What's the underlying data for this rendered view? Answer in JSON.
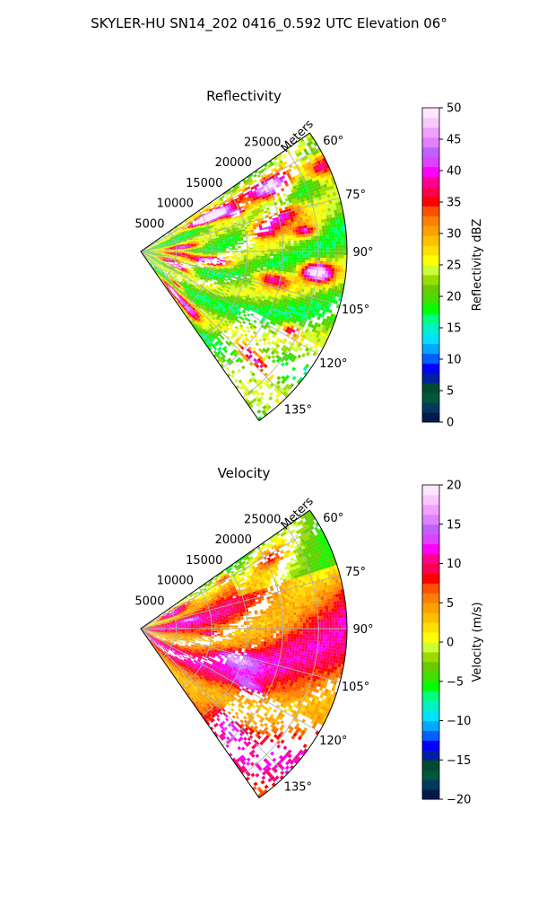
{
  "suptitle": "SKYLER-HU  SN14_202  0416_0.592 UTC Elevation 06°",
  "colors": {
    "background": "#ffffff",
    "grid": "#b0b0b0",
    "axis": "#000000",
    "reflectivity_scale": [
      "#001a4d",
      "#003a5c",
      "#00573d",
      "#004a2f",
      "#0020a0",
      "#0000ff",
      "#0060ff",
      "#00a8ff",
      "#00e0ff",
      "#00f0c8",
      "#00ff80",
      "#00ff00",
      "#40e000",
      "#66cc00",
      "#99dd00",
      "#ccff33",
      "#ffff00",
      "#ffe000",
      "#ffc000",
      "#ffa000",
      "#ff8000",
      "#ff5000",
      "#ff0000",
      "#ff0050",
      "#ff0090",
      "#ff00ff",
      "#e040ff",
      "#c060ff",
      "#e080ff",
      "#f0a0ff",
      "#f8c8ff",
      "#ffe6ff"
    ],
    "velocity_scale": [
      "#001a4d",
      "#003a5c",
      "#00573d",
      "#004a2f",
      "#0020a0",
      "#0000ff",
      "#0060ff",
      "#00a8ff",
      "#00e0ff",
      "#00f0c8",
      "#00ff80",
      "#00ff00",
      "#40e000",
      "#66cc00",
      "#99dd00",
      "#ccff33",
      "#ffff00",
      "#ffe000",
      "#ffc000",
      "#ffa000",
      "#ff8000",
      "#ff5000",
      "#ff0000",
      "#ff0050",
      "#ff0090",
      "#ff00ff",
      "#e040ff",
      "#c060ff",
      "#e080ff",
      "#f0a0ff",
      "#f8c8ff",
      "#ffe6ff"
    ]
  },
  "chart_data": [
    {
      "type": "heatmap",
      "title": "Reflectivity",
      "projection": "polar sector",
      "radial_label": "Meters",
      "radial_ticks": [
        "5000",
        "10000",
        "15000",
        "20000",
        "25000"
      ],
      "radial_tick_values": [
        5000,
        10000,
        15000,
        20000,
        25000
      ],
      "range_max_m": 29000,
      "azimuth_ticks": [
        "60°",
        "75°",
        "90°",
        "105°",
        "120°",
        "135°"
      ],
      "azimuth_tick_values": [
        60,
        75,
        90,
        105,
        120,
        135
      ],
      "azimuth_range_deg": [
        55,
        145
      ],
      "grid": true,
      "colorbar": {
        "label": "Reflectivity dBZ",
        "range": [
          0,
          50
        ],
        "ticks": [
          "0",
          "5",
          "10",
          "15",
          "20",
          "25",
          "30",
          "35",
          "40",
          "45",
          "50"
        ]
      },
      "dominant_values": "mostly 20–30 dBZ with embedded cells of 35–45 dBZ"
    },
    {
      "type": "heatmap",
      "title": "Velocity",
      "projection": "polar sector",
      "radial_label": "Meters",
      "radial_ticks": [
        "5000",
        "10000",
        "15000",
        "20000",
        "25000"
      ],
      "radial_tick_values": [
        5000,
        10000,
        15000,
        20000,
        25000
      ],
      "range_max_m": 29000,
      "azimuth_ticks": [
        "60°",
        "75°",
        "90°",
        "105°",
        "120°",
        "135°"
      ],
      "azimuth_tick_values": [
        60,
        75,
        90,
        105,
        120,
        135
      ],
      "azimuth_range_deg": [
        55,
        145
      ],
      "grid": true,
      "colorbar": {
        "label": "Velocity (m/s)",
        "range": [
          -20,
          20
        ],
        "ticks": [
          "-20",
          "-15",
          "-10",
          "-5",
          "0",
          "5",
          "10",
          "15",
          "20"
        ]
      },
      "dominant_values": "mostly 0–15 m/s outbound, near 0 to the north-east"
    }
  ]
}
